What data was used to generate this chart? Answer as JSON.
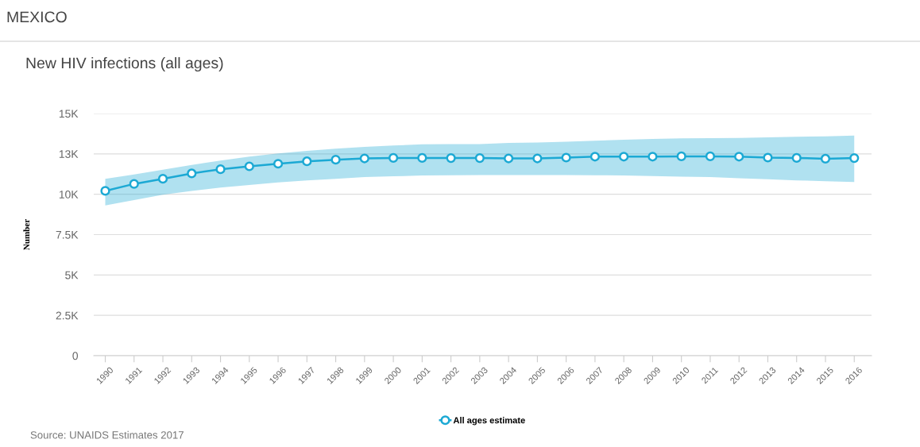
{
  "chart_data": {
    "type": "line",
    "title": "New HIV infections (all ages)",
    "ylabel": "Number",
    "annotations": [
      "MEXICO",
      "Source: UNAIDS Estimates 2017"
    ],
    "categories": [
      "1990",
      "1991",
      "1992",
      "1993",
      "1994",
      "1995",
      "1996",
      "1997",
      "1998",
      "1999",
      "2000",
      "2001",
      "2002",
      "2003",
      "2004",
      "2005",
      "2006",
      "2007",
      "2008",
      "2009",
      "2010",
      "2011",
      "2012",
      "2013",
      "2014",
      "2015",
      "2016"
    ],
    "series": [
      {
        "name": "All ages estimate",
        "color": "#1ca9d4",
        "values": [
          10210,
          10640,
          10960,
          11290,
          11550,
          11730,
          11890,
          12040,
          12140,
          12220,
          12250,
          12250,
          12240,
          12240,
          12220,
          12220,
          12270,
          12330,
          12330,
          12330,
          12350,
          12350,
          12330,
          12270,
          12250,
          12200,
          12240
        ],
        "lower": [
          9310,
          9640,
          9970,
          10210,
          10410,
          10570,
          10730,
          10860,
          10960,
          11060,
          11110,
          11160,
          11180,
          11190,
          11190,
          11190,
          11190,
          11180,
          11160,
          11130,
          11090,
          11060,
          10990,
          10930,
          10860,
          10810,
          10760
        ],
        "upper": [
          10950,
          11220,
          11520,
          11810,
          12090,
          12330,
          12530,
          12690,
          12820,
          12940,
          13020,
          13090,
          13110,
          13110,
          13180,
          13210,
          13260,
          13310,
          13380,
          13430,
          13460,
          13480,
          13490,
          13530,
          13560,
          13590,
          13640
        ]
      }
    ],
    "ylim": [
      0,
      15000
    ],
    "yticks": [
      0,
      {
        "value": 2500,
        "label": "2.5K"
      },
      {
        "value": 5000,
        "label": "5K"
      },
      {
        "value": 7500,
        "label": "7.5K"
      },
      {
        "value": 10000,
        "label": "10K"
      },
      {
        "value": 12500,
        "label": "13K"
      },
      {
        "value": 15000,
        "label": "15K"
      }
    ],
    "grid": "y",
    "legend": "bottom",
    "marker": "circle",
    "line_style": "solid"
  }
}
